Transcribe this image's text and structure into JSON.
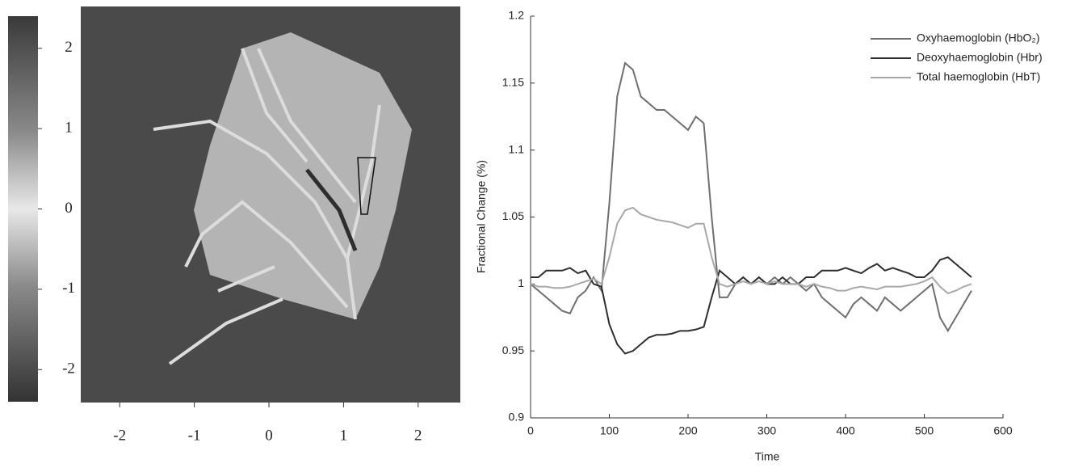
{
  "chart_data": [
    {
      "type": "image",
      "clim": [
        -2.4,
        2.4
      ],
      "cticks": [
        2,
        1,
        0,
        -1,
        -2
      ],
      "xlim": [
        -2.5,
        2.5
      ],
      "xticks": [
        -2,
        -1,
        0,
        1,
        2
      ]
    },
    {
      "type": "line",
      "xlabel": "Time",
      "ylabel": "Fractional Change (%)",
      "xlim": [
        0,
        600
      ],
      "xticks": [
        0,
        100,
        200,
        300,
        400,
        500,
        600
      ],
      "ylim": [
        0.9,
        1.2
      ],
      "yticks": [
        0.9,
        0.95,
        1,
        1.05,
        1.1,
        1.15,
        1.2
      ],
      "legend": "upper right",
      "x": [
        0,
        10,
        20,
        30,
        40,
        50,
        60,
        70,
        80,
        90,
        100,
        110,
        120,
        130,
        140,
        150,
        160,
        170,
        180,
        190,
        200,
        210,
        220,
        230,
        240,
        250,
        260,
        270,
        280,
        290,
        300,
        310,
        320,
        330,
        340,
        350,
        360,
        370,
        380,
        390,
        400,
        410,
        420,
        430,
        440,
        450,
        460,
        470,
        480,
        490,
        500,
        510,
        520,
        530,
        540,
        550,
        560
      ],
      "series": [
        {
          "name": "Oxyhaemoglobin (HbO₂)",
          "color": "#6f6f6f",
          "values": [
            1.0,
            0.995,
            0.99,
            0.985,
            0.98,
            0.978,
            0.99,
            0.995,
            1.005,
            0.995,
            1.06,
            1.14,
            1.165,
            1.16,
            1.14,
            1.135,
            1.13,
            1.13,
            1.125,
            1.12,
            1.115,
            1.125,
            1.12,
            1.05,
            0.99,
            0.99,
            1.0,
            1.005,
            1.0,
            1.005,
            1.0,
            1.005,
            1.0,
            1.005,
            1.0,
            0.995,
            1.0,
            0.99,
            0.985,
            0.98,
            0.975,
            0.985,
            0.99,
            0.985,
            0.98,
            0.99,
            0.985,
            0.98,
            0.985,
            0.99,
            0.995,
            1.0,
            0.975,
            0.965,
            0.975,
            0.985,
            0.995
          ]
        },
        {
          "name": "Deoxyhaemoglobin (Hbr)",
          "color": "#2e2e2e",
          "values": [
            1.005,
            1.005,
            1.01,
            1.01,
            1.01,
            1.012,
            1.008,
            1.01,
            1.0,
            0.998,
            0.97,
            0.955,
            0.948,
            0.95,
            0.955,
            0.96,
            0.962,
            0.962,
            0.963,
            0.965,
            0.965,
            0.966,
            0.968,
            0.99,
            1.01,
            1.005,
            1.0,
            1.005,
            1.0,
            1.005,
            1.0,
            1.0,
            1.005,
            1.0,
            1.0,
            1.005,
            1.005,
            1.01,
            1.01,
            1.01,
            1.012,
            1.01,
            1.008,
            1.012,
            1.015,
            1.01,
            1.012,
            1.01,
            1.008,
            1.005,
            1.005,
            1.01,
            1.018,
            1.02,
            1.015,
            1.01,
            1.005
          ]
        },
        {
          "name": "Total haemoglobin (HbT)",
          "color": "#a8a8a8",
          "values": [
            1.0,
            0.998,
            0.998,
            0.997,
            0.997,
            0.998,
            1.0,
            1.002,
            1.004,
            1.0,
            1.02,
            1.045,
            1.055,
            1.057,
            1.052,
            1.05,
            1.048,
            1.047,
            1.046,
            1.044,
            1.042,
            1.045,
            1.045,
            1.02,
            1.0,
            0.998,
            1.0,
            1.002,
            1.0,
            1.002,
            1.0,
            1.002,
            1.0,
            1.0,
            1.0,
            0.998,
            1.0,
            0.998,
            0.997,
            0.995,
            0.995,
            0.997,
            0.998,
            0.997,
            0.996,
            0.998,
            0.998,
            0.998,
            0.999,
            1.0,
            1.002,
            1.005,
            0.998,
            0.993,
            0.995,
            0.998,
            1.0
          ]
        }
      ]
    }
  ]
}
